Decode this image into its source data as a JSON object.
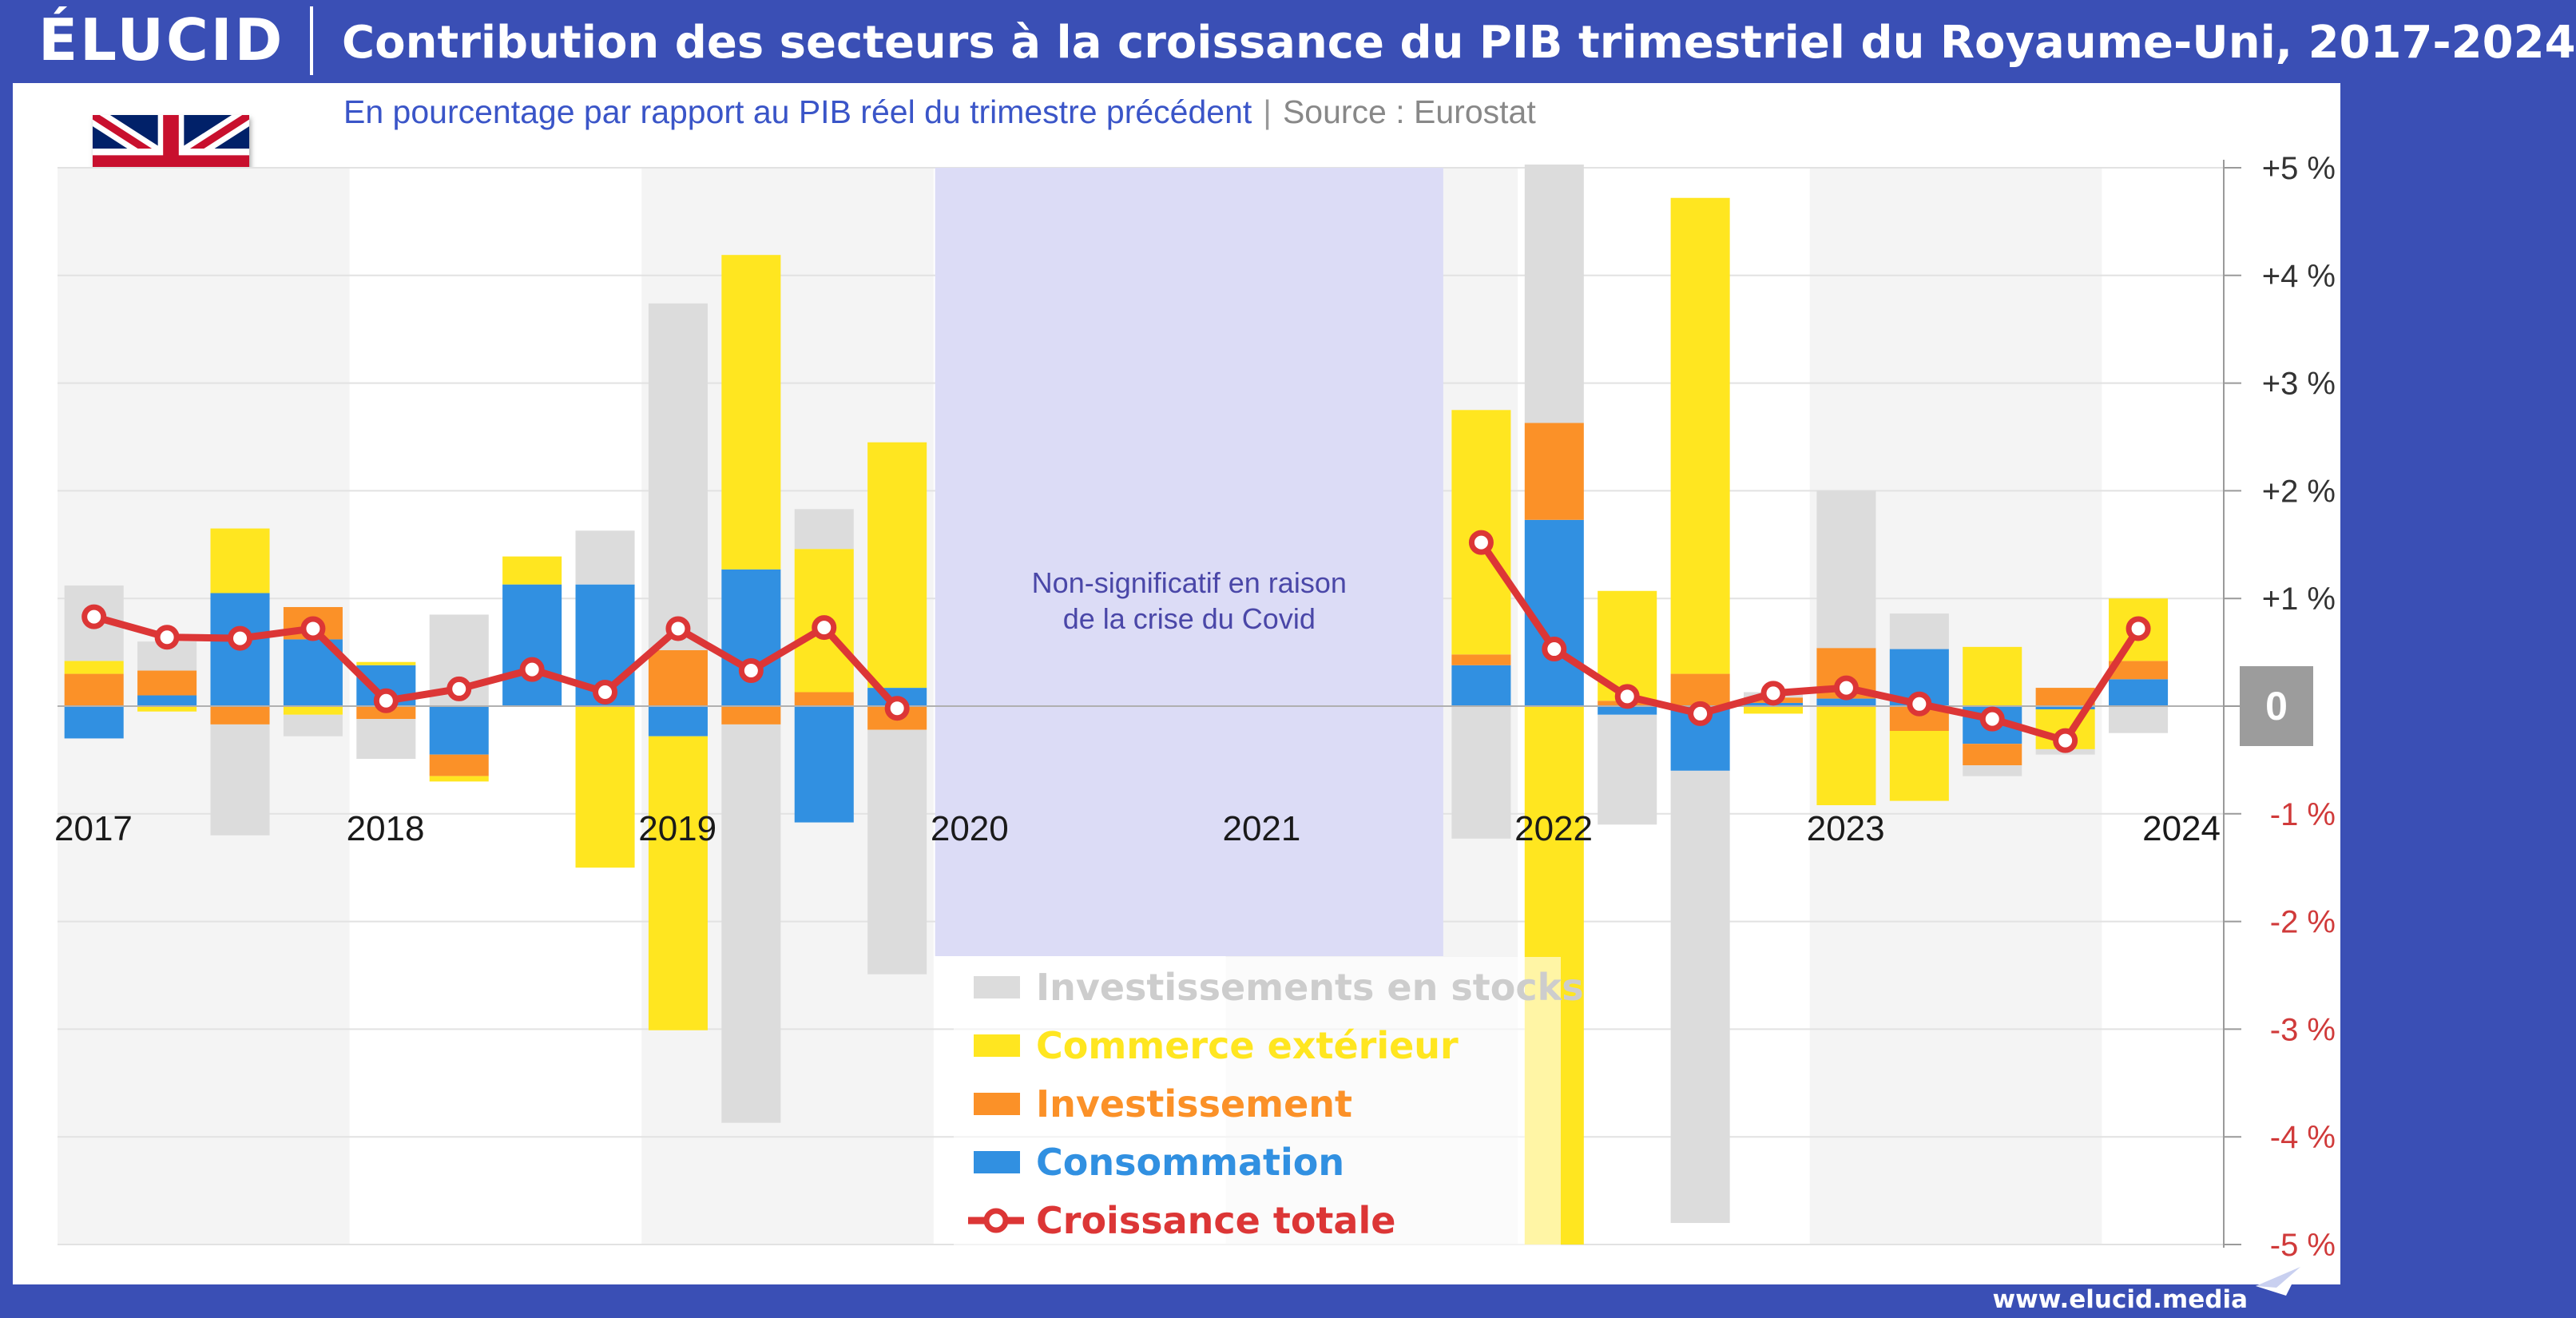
{
  "brand": {
    "logo": "ÉLUCID"
  },
  "header": {
    "title": "Contribution des secteurs à la croissance du PIB trimestriel du Royaume-Uni, 2017-2024"
  },
  "subtitle": {
    "text": "En pourcentage par rapport au PIB réel du trimestre précédent",
    "separator": "|",
    "source": "Source : Eurostat"
  },
  "footer": {
    "url": "www.elucid.media"
  },
  "flag": {
    "icon": "uk-flag-icon"
  },
  "colors": {
    "stocks": "#dcdcdc",
    "trade": "#ffe620",
    "investment": "#fb9128",
    "consumption": "#3190e1",
    "total": "#dc3636",
    "covid_band": "#dcdcf6",
    "brand": "#3a4fb5",
    "negative_tick": "#d03a3a"
  },
  "chart_data": {
    "type": "bar",
    "stacked": true,
    "x": [
      "2017-T1",
      "2017-T2",
      "2017-T3",
      "2017-T4",
      "2018-T1",
      "2018-T2",
      "2018-T3",
      "2018-T4",
      "2019-T1",
      "2019-T2",
      "2019-T3",
      "2019-T4",
      "2020-T1",
      "2020-T2",
      "2020-T3",
      "2020-T4",
      "2021-T1",
      "2021-T2",
      "2021-T3",
      "2021-T4",
      "2022-T1",
      "2022-T2",
      "2022-T3",
      "2022-T4",
      "2023-T1",
      "2023-T2",
      "2023-T3",
      "2023-T4",
      "2024-T1"
    ],
    "year_labels": [
      "2017",
      "2018",
      "2019",
      "2020",
      "2021",
      "2022",
      "2023",
      "2024"
    ],
    "ylim": [
      -5,
      5
    ],
    "yticks": [
      "+5 %",
      "+4 %",
      "+3 %",
      "+2 %",
      "+1 %",
      "0",
      "-1 %",
      "-2 %",
      "-3 %",
      "-4 %",
      "-5 %"
    ],
    "annotation": {
      "line1": "Non-significatif en raison",
      "line2": "de la crise du Covid"
    },
    "covid_range": [
      "2020-T1",
      "2021-T3"
    ],
    "series": [
      {
        "key": "consumption",
        "name": "Consommation",
        "values": [
          -0.3,
          0.1,
          1.05,
          0.62,
          0.38,
          -0.45,
          1.13,
          1.13,
          -0.28,
          1.27,
          -1.08,
          0.17,
          null,
          null,
          null,
          null,
          null,
          null,
          null,
          0.38,
          1.73,
          -0.08,
          -0.6,
          0.03,
          0.07,
          0.53,
          -0.35,
          -0.03,
          0.25
        ]
      },
      {
        "key": "investment",
        "name": "Investissement",
        "values": [
          0.3,
          0.23,
          -0.17,
          0.3,
          -0.12,
          -0.2,
          0,
          0,
          0.52,
          -0.17,
          0.13,
          -0.22,
          null,
          null,
          null,
          null,
          null,
          null,
          null,
          0.1,
          0.9,
          0.05,
          0.3,
          0.05,
          0.47,
          -0.23,
          -0.2,
          0.17,
          0.17
        ]
      },
      {
        "key": "trade",
        "name": "Commerce extérieur",
        "values": [
          0.12,
          -0.05,
          0.6,
          -0.08,
          0.03,
          -0.05,
          0.26,
          -1.5,
          -2.73,
          2.92,
          1.33,
          2.28,
          null,
          null,
          null,
          null,
          null,
          null,
          null,
          2.27,
          -5.0,
          1.02,
          4.42,
          -0.07,
          -0.92,
          -0.65,
          0.55,
          -0.37,
          0.58
        ]
      },
      {
        "key": "stocks",
        "name": "Investissements en stocks",
        "values": [
          0.7,
          0.27,
          -1.03,
          -0.2,
          -0.37,
          0.85,
          0,
          0.5,
          3.22,
          -3.7,
          0.37,
          -2.27,
          null,
          null,
          null,
          null,
          null,
          null,
          null,
          -1.23,
          2.4,
          -1.02,
          -4.2,
          0.05,
          1.46,
          0.33,
          -0.1,
          -0.05,
          -0.25
        ]
      }
    ],
    "total": {
      "key": "total",
      "name": "Croissance totale",
      "values": [
        0.83,
        0.64,
        0.63,
        0.72,
        0.05,
        0.16,
        0.34,
        0.13,
        0.72,
        0.33,
        0.73,
        -0.02,
        null,
        null,
        null,
        null,
        null,
        null,
        null,
        1.52,
        0.53,
        0.09,
        -0.07,
        0.12,
        0.17,
        0.02,
        -0.12,
        -0.32,
        0.72
      ]
    },
    "legend": {
      "position": "bottom-center",
      "items": [
        {
          "key": "stocks",
          "label": "Investissements en stocks"
        },
        {
          "key": "trade",
          "label": "Commerce extérieur"
        },
        {
          "key": "investment",
          "label": "Investissement"
        },
        {
          "key": "consumption",
          "label": "Consommation"
        },
        {
          "key": "total",
          "label": "Croissance totale"
        }
      ]
    }
  }
}
